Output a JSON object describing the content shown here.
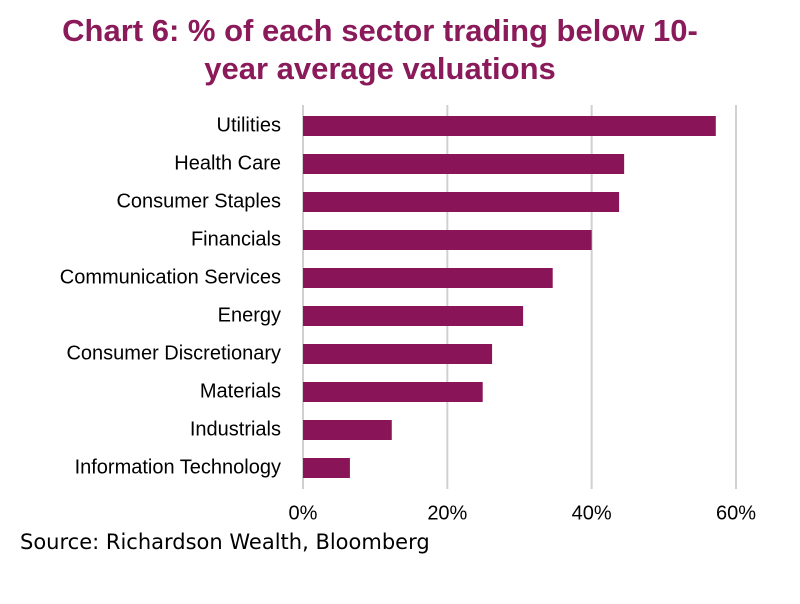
{
  "chart_data": {
    "type": "barh",
    "title": "Chart 6: % of each sector trading below 10-year average valuations",
    "source": "Source: Richardson Wealth, Bloomberg",
    "categories": [
      "Utilities",
      "Health Care",
      "Consumer Staples",
      "Financials",
      "Communication Services",
      "Energy",
      "Consumer Discretionary",
      "Materials",
      "Industrials",
      "Information Technology"
    ],
    "values": [
      57.2,
      44.5,
      43.8,
      40.0,
      34.6,
      30.5,
      26.2,
      24.9,
      12.3,
      6.5
    ],
    "color": "#8a1458",
    "xlim": [
      0,
      60
    ],
    "xticks": [
      {
        "value": 0,
        "label": "0%"
      },
      {
        "value": 20,
        "label": "20%"
      },
      {
        "value": 40,
        "label": "40%"
      },
      {
        "value": 60,
        "label": "60%"
      }
    ],
    "grid": true
  }
}
